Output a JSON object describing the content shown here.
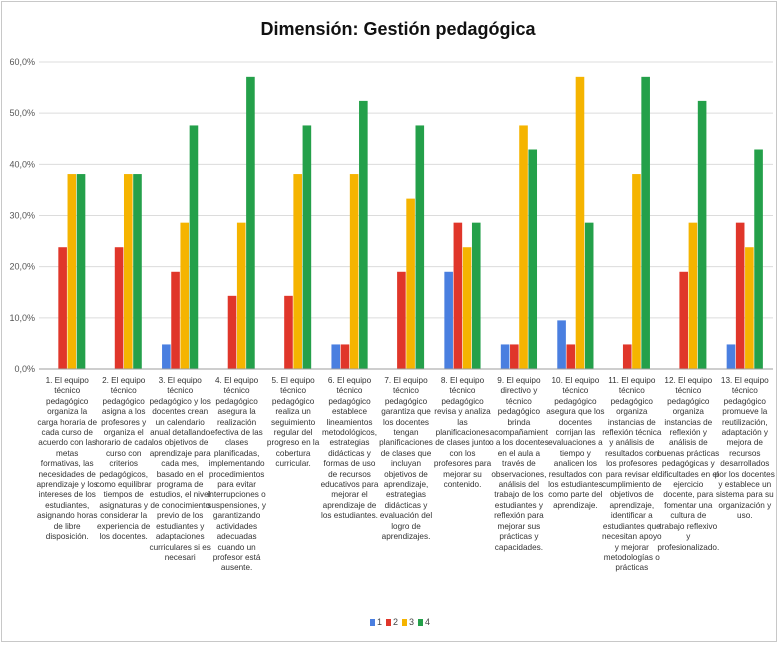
{
  "chart_data": {
    "type": "bar",
    "title": "Dimensión: Gestión pedagógica",
    "xlabel": "",
    "ylabel": "",
    "ylim": [
      0,
      60
    ],
    "yticks": [
      "0,0%",
      "10,0%",
      "20,0%",
      "30,0%",
      "40,0%",
      "50,0%",
      "60,0%"
    ],
    "grid": true,
    "legend_position": "bottom",
    "categories": [
      "1. El equipo técnico pedagógico organiza la carga horaria de cada curso de acuerdo con las metas formativas, las necesidades de aprendizaje y los intereses de los estudiantes, asignando horas de libre disposición.",
      "2. El equipo técnico pedagógico asigna a los profesores y organiza el horario de cada curso con criterios pedagógicos, como equilibrar tiempos de asignaturas y considerar la experiencia de los docentes.",
      "3. El equipo técnico pedagógico y los docentes crean un calendario anual detallando los objetivos de aprendizaje para cada mes, basado en el programa de estudios, el nivel de conocimiento previo de los estudiantes y adaptaciones curriculares si es necesari",
      "4. El equipo técnico pedagógico asegura la realización efectiva de las clases planificadas, implementando procedimientos para evitar interrupciones o suspensiones, y garantizando actividades adecuadas cuando un profesor está ausente.",
      "5. El equipo técnico pedagógico realiza un seguimiento regular del progreso en la cobertura curricular.",
      "6. El equipo técnico pedagógico establece lineamientos metodológicos, estrategias didácticas y formas de uso de recursos educativos para mejorar el aprendizaje de los estudiantes.",
      "7. El equipo técnico pedagógico garantiza que los docentes tengan planificaciones de clases que incluyan objetivos de aprendizaje, estrategias didácticas y evaluación del logro de aprendizajes.",
      "8. El equipo técnico pedagógico revisa y analiza las planificaciones de clases junto con los profesores para mejorar su contenido.",
      "9. El equipo directivo y técnico pedagógico brinda acompañamiento a los docentes en el aula a través de observaciones, análisis del trabajo de los estudiantes y reflexión para mejorar sus prácticas y capacidades.",
      "10. El equipo técnico pedagógico asegura que los docentes corrijan las evaluaciones a tiempo y analicen los resultados con los estudiantes como parte del aprendizaje.",
      "11. El equipo técnico pedagógico organiza instancias de reflexión técnica y análisis de resultados con los profesores para revisar el cumplimiento de objetivos de aprendizaje, identificar a estudiantes que necesitan apoyo y mejorar metodologías o prácticas",
      "12. El equipo técnico pedagógico organiza instancias de reflexión y análisis de buenas prácticas pedagógicas y dificultades en el ejercicio docente, para fomentar una cultura de trabajo reflexivo y profesionalizado.",
      "13. El equipo técnico pedagógico promueve la reutilización, adaptación y mejora de recursos desarrollados por los docentes y establece un sistema para su organización y uso."
    ],
    "series": [
      {
        "name": "1",
        "color": "#4a7fe0",
        "values": [
          0,
          0,
          4.8,
          0,
          0,
          4.8,
          0,
          19.0,
          4.8,
          9.5,
          0,
          0,
          4.8
        ]
      },
      {
        "name": "2",
        "color": "#e0362a",
        "values": [
          23.8,
          23.8,
          19.0,
          14.3,
          14.3,
          4.8,
          19.0,
          28.6,
          4.8,
          4.8,
          4.8,
          19.0,
          28.6
        ]
      },
      {
        "name": "3",
        "color": "#f5b400",
        "values": [
          38.1,
          38.1,
          28.6,
          28.6,
          38.1,
          38.1,
          33.3,
          23.8,
          47.6,
          57.1,
          38.1,
          28.6,
          23.8
        ]
      },
      {
        "name": "4",
        "color": "#24a04a",
        "values": [
          38.1,
          38.1,
          47.6,
          57.1,
          47.6,
          52.4,
          47.6,
          28.6,
          42.9,
          28.6,
          57.1,
          52.4,
          42.9
        ]
      }
    ]
  }
}
